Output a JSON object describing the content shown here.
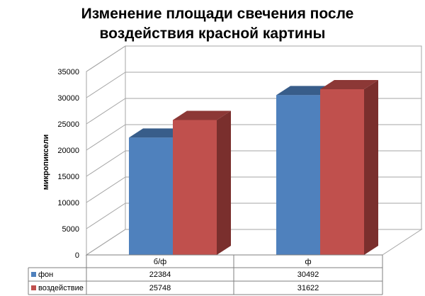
{
  "chart_data": {
    "type": "bar",
    "title_lines": [
      "Изменение площади свечения после",
      "воздействия красной картины"
    ],
    "ylabel": "микропиксели",
    "ylim": [
      0,
      35000
    ],
    "yticks": [
      0,
      5000,
      10000,
      15000,
      20000,
      25000,
      30000,
      35000
    ],
    "categories": [
      "б/ф",
      "ф"
    ],
    "series": [
      {
        "name": "фон",
        "values": [
          22384,
          30492
        ],
        "color": "#4F81BD",
        "top_color": "#385D8A",
        "side_color": "#2C4D75"
      },
      {
        "name": "воздействие",
        "values": [
          25748,
          31622
        ],
        "color": "#C0504D",
        "top_color": "#8C3836",
        "side_color": "#7A2F2D"
      }
    ],
    "grid": true,
    "style": "3d-column-with-data-table"
  }
}
